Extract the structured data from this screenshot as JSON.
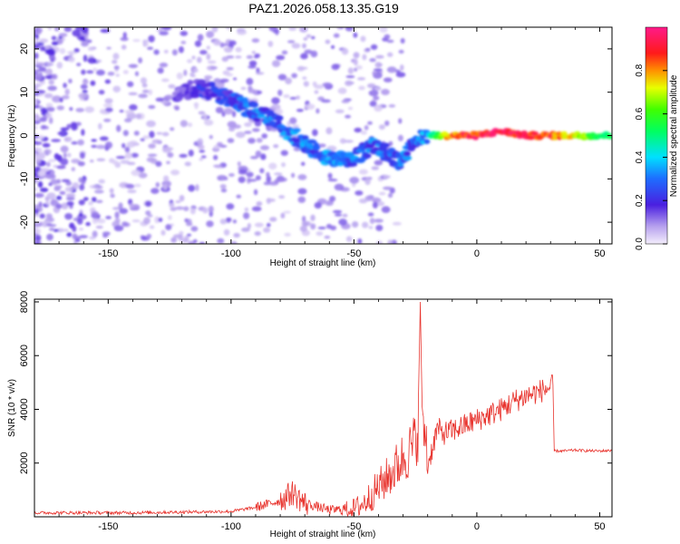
{
  "title": "PAZ1.2026.058.13.35.G19",
  "chart_data": [
    {
      "type": "heatmap",
      "xlabel": "Height of straight line (km)",
      "ylabel": "Frequency (Hz)",
      "xlim": [
        -180,
        55
      ],
      "ylim": [
        -25,
        25
      ],
      "xticks": [
        -150,
        -100,
        -50,
        0,
        50
      ],
      "yticks": [
        -20,
        -10,
        0,
        10,
        20
      ],
      "colorbar": {
        "label": "Normalized spectral amplitude",
        "range": [
          0,
          1
        ],
        "ticks": [
          0.0,
          0.2,
          0.4,
          0.6,
          0.8
        ],
        "colormap": "rainbow (light violet to magenta)"
      },
      "ridge": {
        "x": [
          -122,
          -112,
          -102,
          -92,
          -82,
          -72,
          -62,
          -52,
          -42,
          -32,
          -22,
          -12,
          0,
          10,
          20,
          30,
          40,
          55
        ],
        "freq": [
          10,
          11,
          9,
          6,
          3,
          -1,
          -5,
          -6,
          -2,
          -6,
          0,
          0,
          0,
          1,
          0,
          0,
          0,
          0
        ],
        "amplitude": [
          0.15,
          0.2,
          0.25,
          0.3,
          0.3,
          0.32,
          0.32,
          0.3,
          0.3,
          0.3,
          0.3,
          0.85,
          0.95,
          0.95,
          0.95,
          0.9,
          0.75,
          0.5
        ]
      }
    },
    {
      "type": "line",
      "color": "#e8342e",
      "xlabel": "Height of straight line (km)",
      "ylabel": "SNR (10 * v/v)",
      "xlim": [
        -180,
        55
      ],
      "ylim": [
        0,
        8100
      ],
      "xticks": [
        -150,
        -100,
        -50,
        0,
        50
      ],
      "yticks": [
        2000,
        4000,
        6000,
        8000
      ],
      "x": [
        -180,
        -140,
        -100,
        -90,
        -80,
        -75,
        -70,
        -60,
        -50,
        -46,
        -42,
        -38,
        -34,
        -30,
        -26,
        -24,
        -23,
        -22,
        -21,
        -20,
        -18,
        -16,
        -14,
        -10,
        -5,
        0,
        5,
        10,
        15,
        20,
        25,
        28,
        31,
        31.5,
        35,
        40,
        45,
        50,
        55
      ],
      "values": [
        150,
        150,
        200,
        350,
        600,
        900,
        500,
        250,
        300,
        500,
        900,
        1300,
        1700,
        2200,
        2600,
        3200,
        8000,
        2800,
        3400,
        1900,
        2600,
        3300,
        3100,
        3200,
        3400,
        3600,
        3800,
        4000,
        4300,
        4500,
        4650,
        4750,
        4850,
        2450,
        2450,
        2480,
        2460,
        2450,
        2470
      ],
      "spike": {
        "x": -23,
        "value": 8000
      }
    }
  ]
}
